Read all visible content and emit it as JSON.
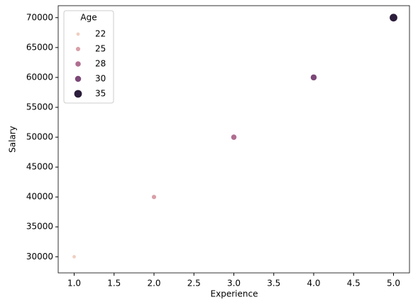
{
  "chart_data": {
    "type": "scatter",
    "x_label": "Experience",
    "y_label": "Salary",
    "x": [
      1,
      2,
      3,
      4,
      5
    ],
    "y": [
      30000,
      40000,
      50000,
      60000,
      70000
    ],
    "age": [
      22,
      25,
      28,
      30,
      35
    ],
    "colors": [
      "#efcfc0",
      "#d8a0a9",
      "#af6e90",
      "#7c4878",
      "#2b1d3b"
    ],
    "legend_title": "Age",
    "legend": "upper left",
    "xlim": [
      0.8,
      5.2
    ],
    "xticks": [
      {
        "value": 1,
        "label": "1.0"
      },
      1.5,
      {
        "value": 2,
        "label": "2.0"
      },
      2.5,
      {
        "value": 3,
        "label": "3.0"
      },
      3.5,
      {
        "value": 4,
        "label": "4.0"
      },
      4.5,
      {
        "value": 5,
        "label": "5.0"
      }
    ],
    "ylim": [
      27300,
      72000
    ],
    "yticks": [
      30000,
      35000,
      40000,
      45000,
      50000,
      55000,
      60000,
      65000,
      70000
    ]
  }
}
